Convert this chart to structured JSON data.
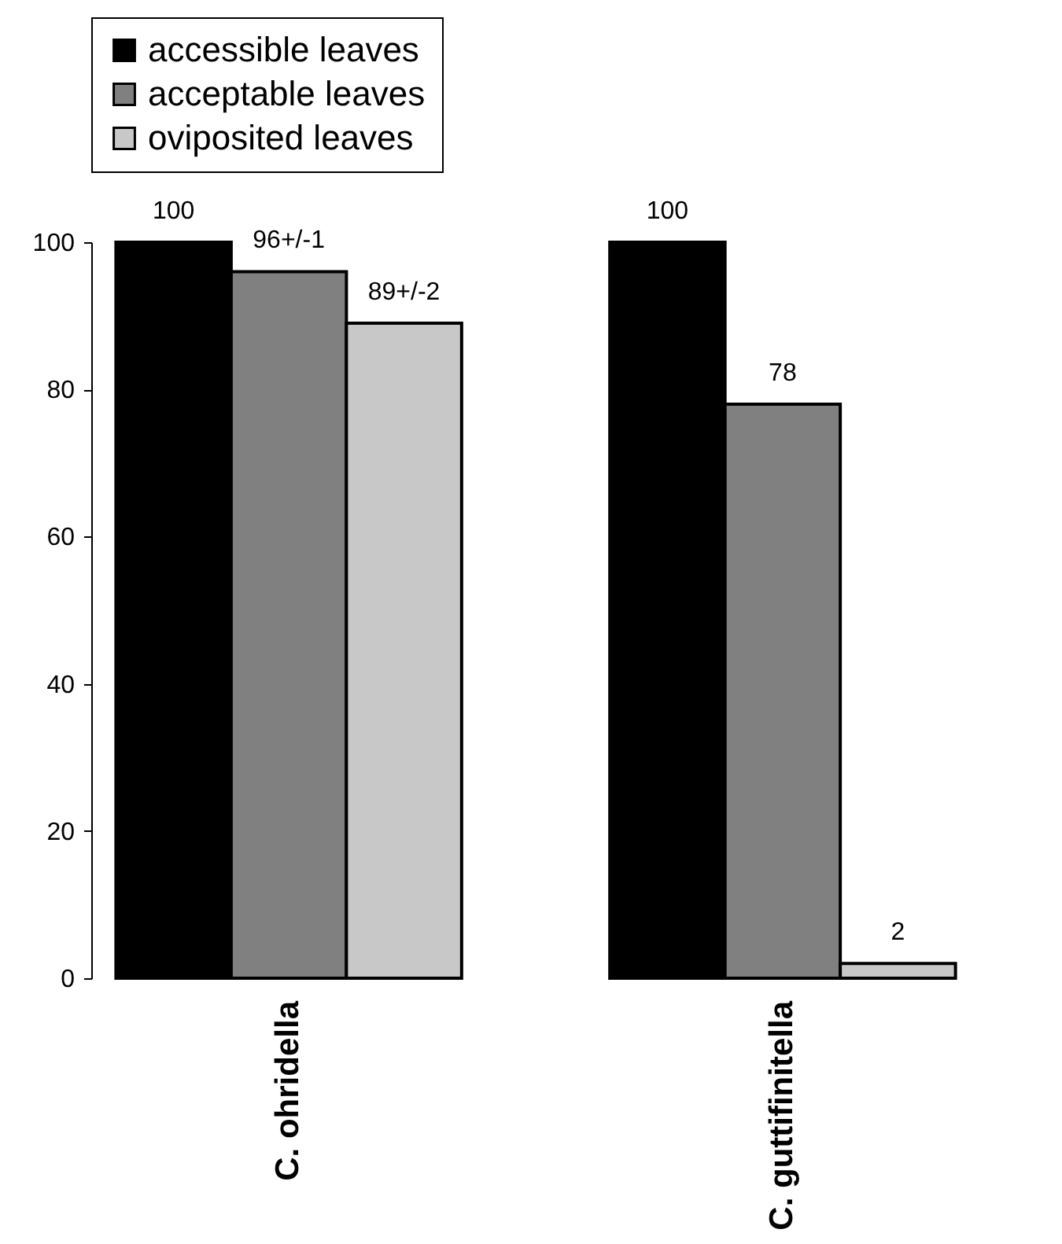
{
  "chart_data": {
    "type": "bar",
    "categories": [
      "C. ohridella",
      "C. guttifinitella"
    ],
    "series": [
      {
        "name": "accessible leaves",
        "color": "#000000",
        "values": [
          100,
          100
        ],
        "value_labels": [
          "100",
          "100"
        ]
      },
      {
        "name": "acceptable leaves",
        "color": "#808080",
        "values": [
          96,
          78
        ],
        "value_labels": [
          "96+/-1",
          "78"
        ]
      },
      {
        "name": "oviposited leaves",
        "color": "#c8c8c8",
        "values": [
          89,
          2
        ],
        "value_labels": [
          "89+/-2",
          "2"
        ]
      }
    ],
    "ylim": [
      0,
      100
    ],
    "yticks": [
      0,
      20,
      40,
      60,
      80,
      100
    ],
    "legend": "top"
  }
}
